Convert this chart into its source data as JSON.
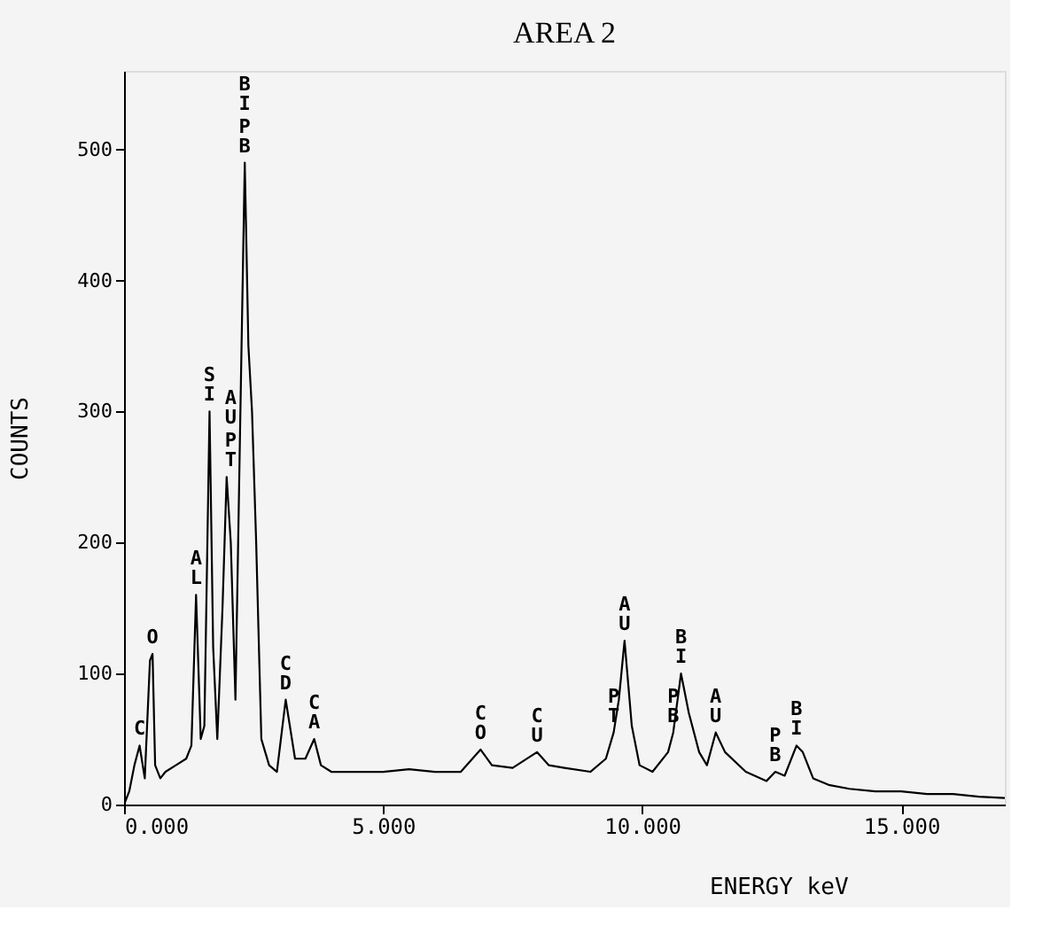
{
  "chart_data": {
    "type": "line",
    "title": "AREA 2",
    "xlabel": "ENERGY keV",
    "ylabel": "COUNTS",
    "x": [
      0.0,
      0.1,
      0.2,
      0.3,
      0.4,
      0.5,
      0.55,
      0.6,
      0.7,
      0.8,
      1.0,
      1.2,
      1.3,
      1.39,
      1.48,
      1.55,
      1.65,
      1.72,
      1.8,
      1.9,
      1.98,
      2.06,
      2.15,
      2.25,
      2.33,
      2.4,
      2.47,
      2.55,
      2.65,
      2.8,
      2.95,
      3.12,
      3.2,
      3.3,
      3.5,
      3.67,
      3.8,
      4.0,
      4.5,
      5.0,
      5.5,
      6.0,
      6.5,
      6.88,
      7.1,
      7.5,
      7.97,
      8.2,
      8.5,
      9.0,
      9.3,
      9.45,
      9.55,
      9.66,
      9.8,
      9.95,
      10.2,
      10.5,
      10.6,
      10.75,
      10.9,
      11.1,
      11.25,
      11.42,
      11.6,
      12.0,
      12.4,
      12.57,
      12.75,
      12.98,
      13.1,
      13.3,
      13.6,
      14.0,
      14.5,
      15.0,
      15.5,
      16.0,
      16.5,
      17.0
    ],
    "values": [
      0,
      10,
      30,
      45,
      20,
      110,
      115,
      30,
      20,
      25,
      30,
      35,
      45,
      160,
      50,
      60,
      300,
      120,
      50,
      150,
      250,
      200,
      80,
      310,
      490,
      350,
      300,
      200,
      50,
      30,
      25,
      80,
      60,
      35,
      35,
      50,
      30,
      25,
      25,
      25,
      27,
      25,
      25,
      42,
      30,
      28,
      40,
      30,
      28,
      25,
      35,
      55,
      80,
      125,
      60,
      30,
      25,
      40,
      55,
      100,
      70,
      40,
      30,
      55,
      40,
      25,
      18,
      25,
      22,
      45,
      40,
      20,
      15,
      12,
      10,
      10,
      8,
      8,
      6,
      5
    ],
    "color": "#000000",
    "xlim": [
      0,
      17
    ],
    "xticks": [
      {
        "value": 0,
        "label": "0.000"
      },
      {
        "value": 5,
        "label": "5.000"
      },
      {
        "value": 10,
        "label": "10.000"
      },
      {
        "value": 15,
        "label": "15.000"
      }
    ],
    "ylim": [
      0,
      560
    ],
    "yticks": [
      0,
      100,
      200,
      300,
      400,
      500
    ],
    "grid": false,
    "marker": "none",
    "line_style": "solid",
    "annotations": [
      {
        "text": "C",
        "x": 0.3,
        "y": 45
      },
      {
        "text": "O",
        "x": 0.55,
        "y": 115
      },
      {
        "text": "AL",
        "x": 1.39,
        "y": 160
      },
      {
        "text": "SI",
        "x": 1.65,
        "y": 300
      },
      {
        "text": "AU",
        "x": 2.06,
        "y": 250
      },
      {
        "text": "PT",
        "x": 2.06,
        "y": 250
      },
      {
        "text": "BI",
        "x": 2.33,
        "y": 490
      },
      {
        "text": "PB",
        "x": 2.33,
        "y": 490
      },
      {
        "text": "CD",
        "x": 3.12,
        "y": 80
      },
      {
        "text": "CA",
        "x": 3.67,
        "y": 50
      },
      {
        "text": "CO",
        "x": 6.88,
        "y": 42
      },
      {
        "text": "CU",
        "x": 7.97,
        "y": 40
      },
      {
        "text": "PT",
        "x": 9.45,
        "y": 55
      },
      {
        "text": "AU",
        "x": 9.66,
        "y": 125
      },
      {
        "text": "PB",
        "x": 10.6,
        "y": 55
      },
      {
        "text": "BI",
        "x": 10.75,
        "y": 100
      },
      {
        "text": "AU",
        "x": 11.42,
        "y": 55
      },
      {
        "text": "PB",
        "x": 12.57,
        "y": 25
      },
      {
        "text": "BI",
        "x": 12.98,
        "y": 45
      }
    ]
  }
}
